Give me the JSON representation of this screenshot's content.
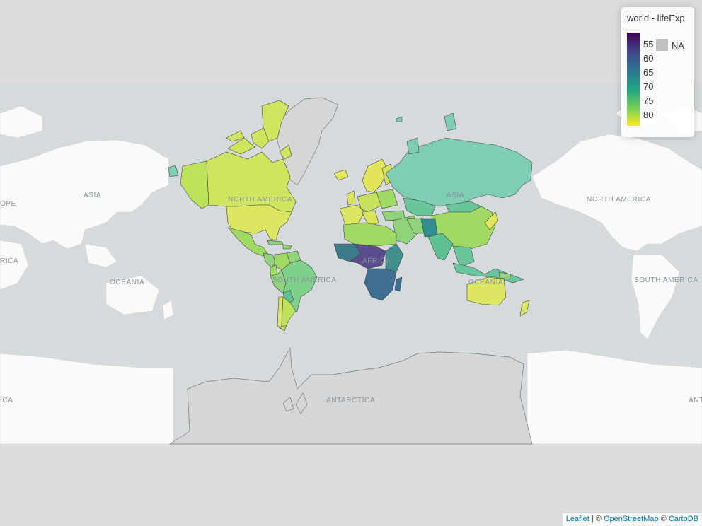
{
  "map": {
    "legend": {
      "title": "world - lifeExp",
      "ticks": [
        "55",
        "60",
        "65",
        "70",
        "75",
        "80"
      ],
      "na_label": "NA",
      "na_color": "#c0c0c0",
      "palette": [
        "#440154",
        "#414487",
        "#2a788e",
        "#22a884",
        "#7ad151",
        "#fde725"
      ]
    },
    "basemap_labels": {
      "asia_left": "ASIA",
      "europe_left": "OPE",
      "africa_left": "RICA",
      "oceania_left": "OCEANIA",
      "antarctica_left": "ICA",
      "north_america": "NORTH AMERICA",
      "south_america": "SOUTH AMERICA",
      "asia": "ASIA",
      "africa": "AFRICA",
      "oceania": "OCEANIA",
      "antarctica": "ANTARCTICA",
      "north_america_right": "NORTH AMERICA",
      "south_america_right": "SOUTH AMERICA",
      "antarctica_right": "ANT"
    },
    "attribution": {
      "leaflet": "Leaflet",
      "sep1": " | © ",
      "osm": "OpenStreetMap",
      "sep2": " © ",
      "carto": "CartoDB"
    },
    "colors": {
      "ocean": "#d5dadc",
      "land": "#fafaf8",
      "background": "#dddddd",
      "na_land": "#d6d6d6"
    }
  }
}
